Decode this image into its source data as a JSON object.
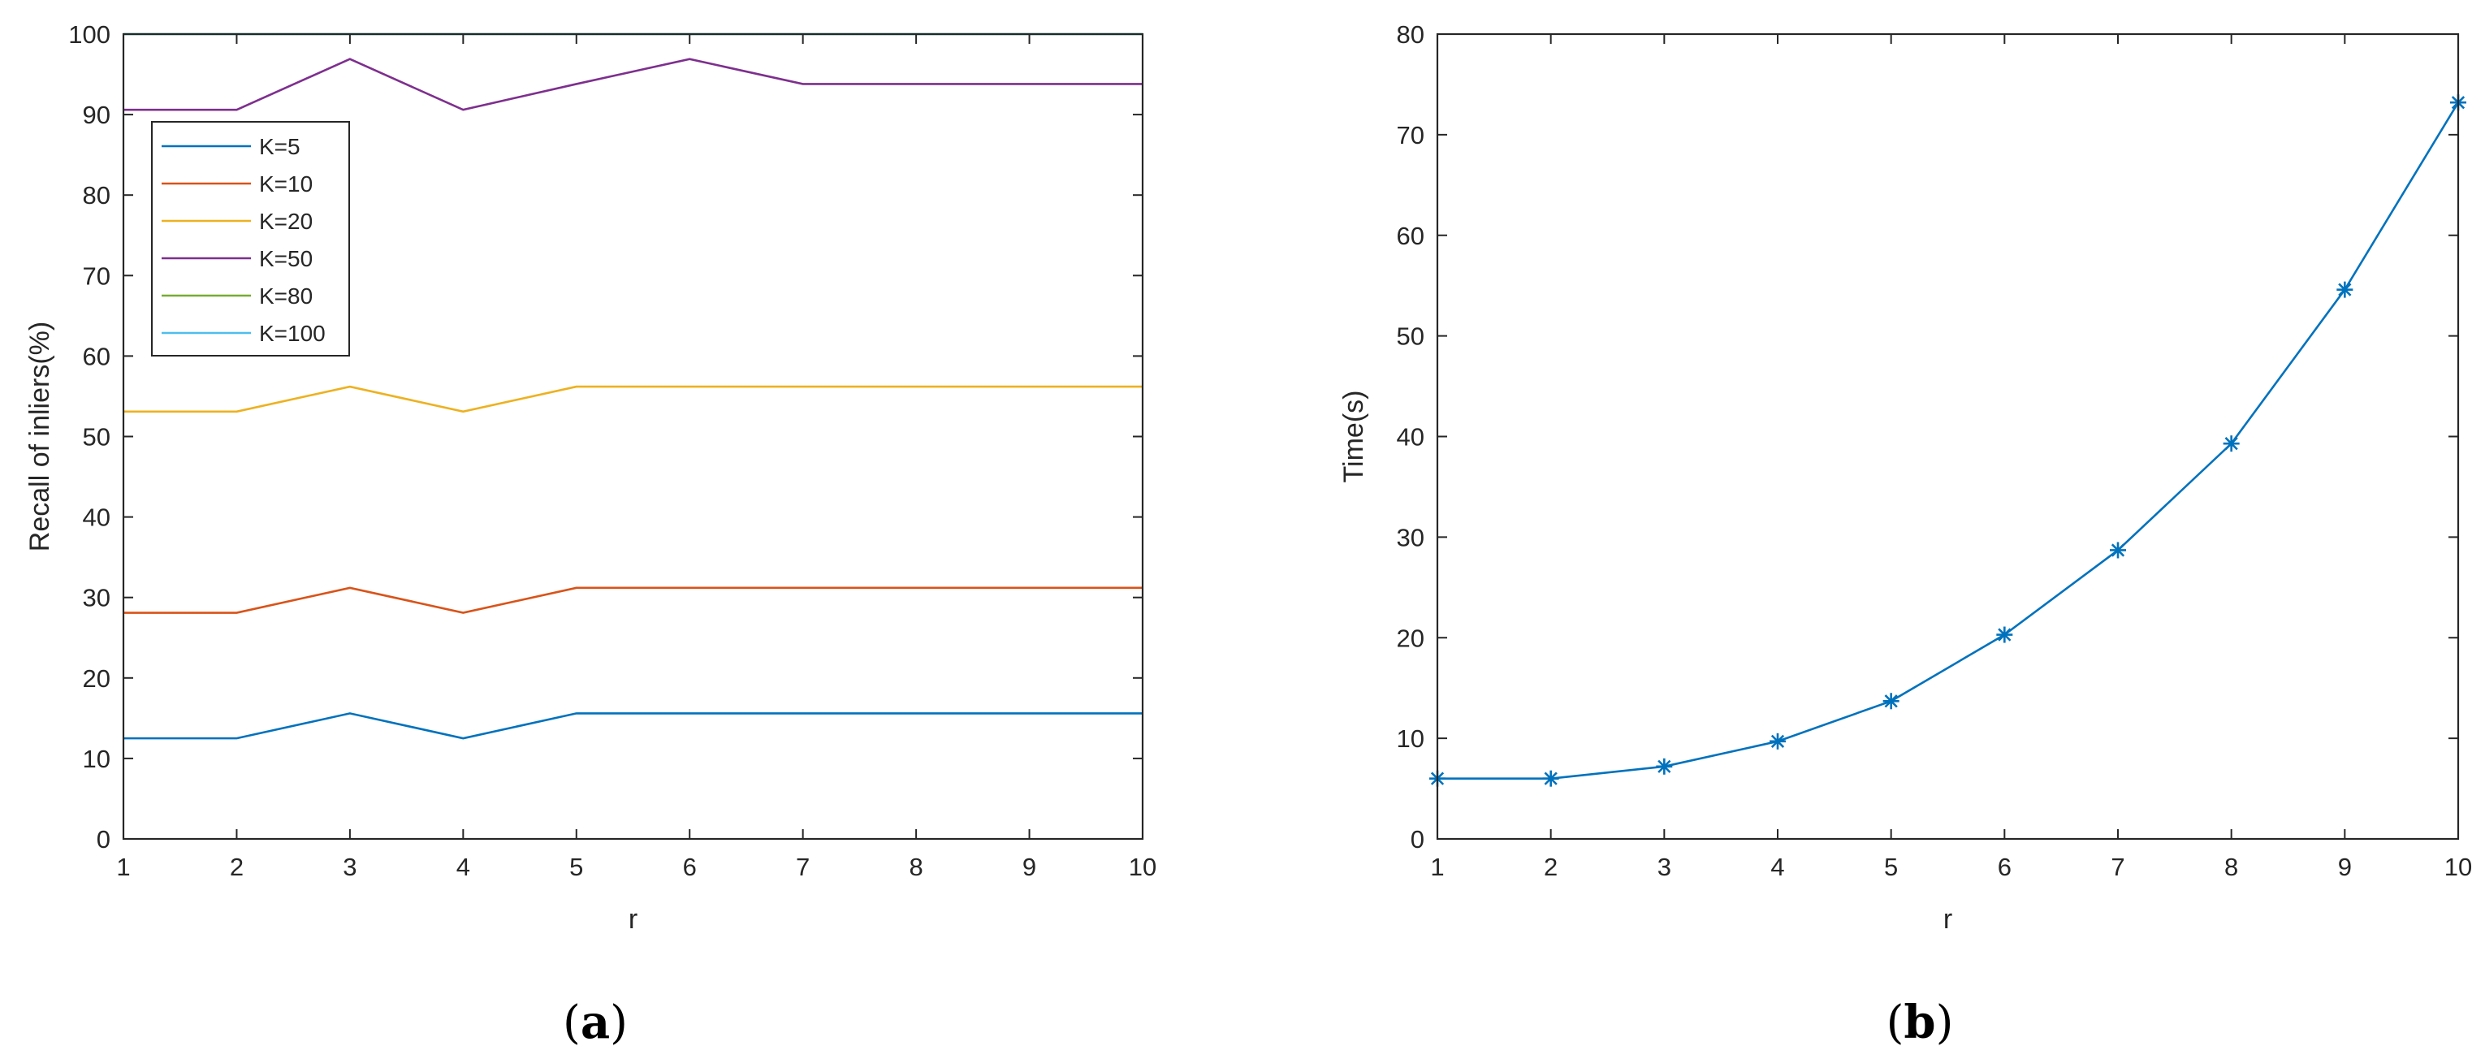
{
  "chart_data": [
    {
      "type": "line",
      "panel": "(a)",
      "xlabel": "r",
      "ylabel": "Recall of inliers(%)",
      "x": [
        1,
        2,
        3,
        4,
        5,
        6,
        7,
        8,
        9,
        10
      ],
      "xlim": [
        1,
        10
      ],
      "ylim": [
        0,
        100
      ],
      "xticks": [
        1,
        2,
        3,
        4,
        5,
        6,
        7,
        8,
        9,
        10
      ],
      "yticks": [
        0,
        10,
        20,
        30,
        40,
        50,
        60,
        70,
        80,
        90,
        100
      ],
      "grid": false,
      "legend": "top-left",
      "series": [
        {
          "name": "K=5",
          "color": "#0072BD",
          "values": [
            12.5,
            12.5,
            15.6,
            12.5,
            15.6,
            15.6,
            15.6,
            15.6,
            15.6,
            15.6
          ]
        },
        {
          "name": "K=10",
          "color": "#D95319",
          "values": [
            28.1,
            28.1,
            31.2,
            28.1,
            31.2,
            31.2,
            31.2,
            31.2,
            31.2,
            31.2
          ]
        },
        {
          "name": "K=20",
          "color": "#EDB120",
          "values": [
            53.1,
            53.1,
            56.2,
            53.1,
            56.2,
            56.2,
            56.2,
            56.2,
            56.2,
            56.2
          ]
        },
        {
          "name": "K=50",
          "color": "#7E2F8E",
          "values": [
            90.6,
            90.6,
            96.9,
            90.6,
            93.8,
            96.9,
            93.8,
            93.8,
            93.8,
            93.8
          ]
        },
        {
          "name": "K=80",
          "color": "#77AC30",
          "values": [
            100,
            100,
            100,
            100,
            100,
            100,
            100,
            100,
            100,
            100
          ]
        },
        {
          "name": "K=100",
          "color": "#4DBEEE",
          "values": [
            100,
            100,
            100,
            100,
            100,
            100,
            100,
            100,
            100,
            100
          ]
        }
      ]
    },
    {
      "type": "line",
      "panel": "(b)",
      "xlabel": "r",
      "ylabel": "Time(s)",
      "x": [
        1,
        2,
        3,
        4,
        5,
        6,
        7,
        8,
        9,
        10
      ],
      "xlim": [
        1,
        10
      ],
      "ylim": [
        0,
        80
      ],
      "xticks": [
        1,
        2,
        3,
        4,
        5,
        6,
        7,
        8,
        9,
        10
      ],
      "yticks": [
        0,
        10,
        20,
        30,
        40,
        50,
        60,
        70,
        80
      ],
      "grid": false,
      "marker": "asterisk",
      "series": [
        {
          "color": "#0072BD",
          "values": [
            6.0,
            6.0,
            7.2,
            9.7,
            13.7,
            20.3,
            28.7,
            39.3,
            54.6,
            73.2
          ]
        }
      ]
    }
  ]
}
